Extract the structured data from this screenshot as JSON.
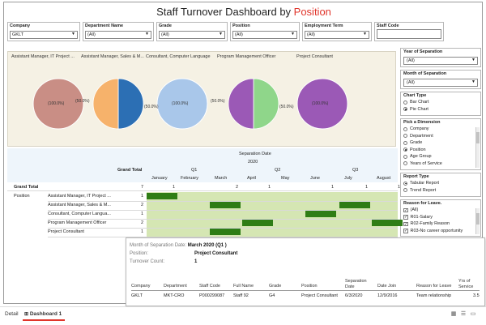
{
  "title": {
    "main": "Staff Turnover Dashboard by ",
    "highlight": "Position"
  },
  "filters": [
    {
      "label": "Company",
      "value": "GKLT"
    },
    {
      "label": "Department Name",
      "value": "(All)"
    },
    {
      "label": "Grade",
      "value": "(All)"
    },
    {
      "label": "Position",
      "value": "(All)"
    },
    {
      "label": "Employment Term",
      "value": "(All)"
    },
    {
      "label": "Staff Code",
      "value": ""
    }
  ],
  "pies": [
    {
      "header": "Assistant Manager, IT Project ...",
      "left_label": "",
      "center_label": "(100.0%)",
      "right_label": "",
      "slices": [
        1.0
      ],
      "colors": [
        "#c98e85"
      ]
    },
    {
      "header": "Assistant Manager, Sales & M...",
      "left_label": "(50.0%)",
      "center_label": "",
      "right_label": "(50.0%)",
      "slices": [
        0.5,
        0.5
      ],
      "colors": [
        "#2c6fb4",
        "#f6b26b"
      ]
    },
    {
      "header": "Consultant, Computer Language",
      "left_label": "",
      "center_label": "(100.0%)",
      "right_label": "",
      "slices": [
        1.0
      ],
      "colors": [
        "#a9c7ea"
      ]
    },
    {
      "header": "Program Management Officer",
      "left_label": "(50.0%)",
      "center_label": "",
      "right_label": "(50.0%)",
      "slices": [
        0.5,
        0.5
      ],
      "colors": [
        "#8fd68a",
        "#9b59b6"
      ]
    },
    {
      "header": "Project Consultant",
      "left_label": "",
      "center_label": "(100.0%)",
      "right_label": "",
      "slices": [
        1.0
      ],
      "colors": [
        "#9b59b6"
      ]
    }
  ],
  "right_panel": {
    "year_label": "Year of Separation",
    "year_value": "(All)",
    "month_label": "Month of Separation",
    "month_value": "(All)",
    "chart_type_label": "Chart Type",
    "chart_types": [
      {
        "label": "Bar Chart",
        "on": false
      },
      {
        "label": "Pie Chart",
        "on": true
      }
    ],
    "dimension_label": "Pick a Dimension",
    "dimensions": [
      {
        "label": "Company",
        "on": false
      },
      {
        "label": "Department",
        "on": false
      },
      {
        "label": "Grade",
        "on": false
      },
      {
        "label": "Position",
        "on": true
      },
      {
        "label": "Age Group",
        "on": false
      },
      {
        "label": "Years of Service",
        "on": false
      }
    ],
    "report_label": "Report Type",
    "reports": [
      {
        "label": "Tabular Report",
        "on": true
      },
      {
        "label": "Trend Report",
        "on": false
      }
    ],
    "reason_label": "Reason for Leave.",
    "reasons": [
      {
        "label": "(All)",
        "on": true
      },
      {
        "label": "R01-Salary",
        "on": true
      },
      {
        "label": "R02-Family Reason",
        "on": true
      },
      {
        "label": "R03-No career opportunity",
        "on": true
      }
    ]
  },
  "table": {
    "header_top": "Separation Date",
    "year": "2020",
    "grand_total_header": "Grand Total",
    "quarters": [
      "Q1",
      "Q2",
      "Q3"
    ],
    "months": [
      "January",
      "February",
      "March",
      "April",
      "May",
      "June",
      "July",
      "August"
    ],
    "grand_total_row": {
      "label": "Grand Total",
      "total": "7",
      "months": [
        "1",
        "",
        "2",
        "1",
        "",
        "1",
        "1",
        "1"
      ]
    },
    "row_group": "Position",
    "rows": [
      {
        "label": "Assistant Manager, IT Project ...",
        "total": "1",
        "month_index": 0
      },
      {
        "label": "Assistant Manager, Sales & M...",
        "total": "2",
        "month_index": 2
      },
      {
        "label": "Consultant, Computer Langua...",
        "total": "1",
        "month_index": 5
      },
      {
        "label": "Program Management Officer",
        "total": "2",
        "month_index": 3
      },
      {
        "label": "Project Consultant",
        "total": "1",
        "month_index": 2
      }
    ],
    "extra_bars": [
      {
        "row": 1,
        "month_index": 6
      },
      {
        "row": 3,
        "month_index": 7
      }
    ]
  },
  "tooltip": {
    "month_label": "Month of Separation Date:",
    "month_value": "March 2020 (Q1 )",
    "position_label": "Position:",
    "position_value": "Project Consultant",
    "count_label": "Turnover Count:",
    "count_value": "1",
    "columns": [
      "Company",
      "Department",
      "Staff Code",
      "Full Name",
      "Grade",
      "Position",
      "Separation Date",
      "Date Join",
      "Reason for Leave",
      "Yrs of Service"
    ],
    "row": [
      "GKLT",
      "MKT-CRO",
      "P000299087",
      "Staff 92",
      "G4",
      "Project Consultant",
      "6/3/2020",
      "12/9/2016",
      "Team relationship",
      "3.5"
    ]
  },
  "bottom": {
    "tab_detail": "Detail",
    "tab_dashboard": "Dashboard 1"
  }
}
